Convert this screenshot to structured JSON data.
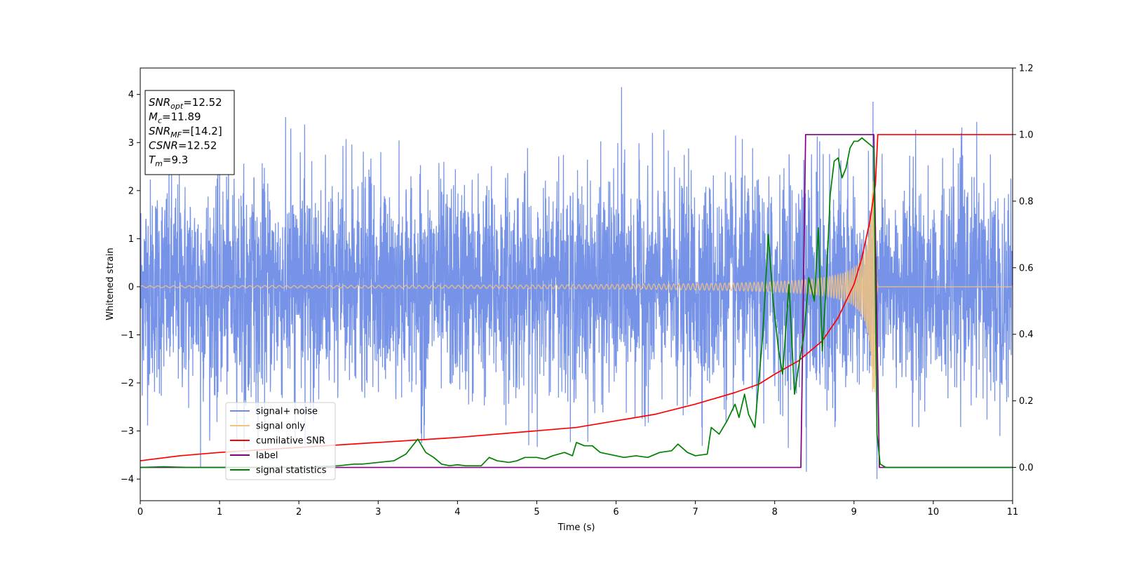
{
  "chart_data": {
    "type": "line",
    "xlabel": "Time (s)",
    "ylabel": "Whitened strain",
    "xlim": [
      0,
      11
    ],
    "ylim": [
      -4.45,
      4.55
    ],
    "y2lim": [
      -0.1,
      1.2
    ],
    "xticks": [
      0,
      1,
      2,
      3,
      4,
      5,
      6,
      7,
      8,
      9,
      10,
      11
    ],
    "yticks": [
      -4,
      -3,
      -2,
      -1,
      0,
      1,
      2,
      3,
      4
    ],
    "y2ticks": [
      "0.0",
      "0.2",
      "0.4",
      "0.6",
      "0.8",
      "1.0",
      "1.2"
    ],
    "y2tick_values": [
      0.0,
      0.2,
      0.4,
      0.6,
      0.8,
      1.0,
      1.2
    ],
    "legend_position": "lower-left",
    "stats_box": {
      "position": "upper-left",
      "lines": [
        {
          "sym": "SNR",
          "sub": "opt",
          "val": "=12.52"
        },
        {
          "sym": "M",
          "sub": "c",
          "val": "=11.89"
        },
        {
          "sym": "SNR",
          "sub": "MF",
          "val": "=[14.2]"
        },
        {
          "sym": "CSNR",
          "sub": "",
          "val": "=12.52"
        },
        {
          "sym": "T",
          "sub": "m",
          "val": "=9.3"
        }
      ]
    },
    "series": [
      {
        "name": "signal+ noise",
        "axis": "left",
        "color": "#6f8de6",
        "kind": "noise",
        "noise_std": 1.1,
        "noise_range": [
          -3.4,
          3.6
        ],
        "spikes": [
          {
            "x": 0.76,
            "y": -3.75
          },
          {
            "x": 6.07,
            "y": 4.15
          },
          {
            "x": 9.24,
            "y": 3.85
          },
          {
            "x": 8.4,
            "y": -3.85
          },
          {
            "x": 9.29,
            "y": -4.0
          }
        ]
      },
      {
        "name": "signal only",
        "axis": "left",
        "color": "#f2c380",
        "kind": "chirp",
        "amp_start": 0.02,
        "merger": 9.27,
        "end_amp": 2.2
      },
      {
        "name": "cumilative SNR",
        "axis": "right",
        "color": "#ff0000",
        "points": [
          [
            0,
            0.02
          ],
          [
            0.5,
            0.035
          ],
          [
            1,
            0.045
          ],
          [
            2,
            0.06
          ],
          [
            3,
            0.075
          ],
          [
            4,
            0.09
          ],
          [
            5,
            0.11
          ],
          [
            5.5,
            0.12
          ],
          [
            6,
            0.14
          ],
          [
            6.5,
            0.16
          ],
          [
            7,
            0.19
          ],
          [
            7.5,
            0.225
          ],
          [
            7.8,
            0.25
          ],
          [
            8,
            0.28
          ],
          [
            8.3,
            0.32
          ],
          [
            8.6,
            0.38
          ],
          [
            8.8,
            0.45
          ],
          [
            9.0,
            0.55
          ],
          [
            9.1,
            0.63
          ],
          [
            9.2,
            0.74
          ],
          [
            9.27,
            0.85
          ],
          [
            9.3,
            1.0
          ],
          [
            11,
            1.0
          ]
        ]
      },
      {
        "name": "label",
        "axis": "right",
        "color": "#800080",
        "points": [
          [
            0,
            0
          ],
          [
            8.33,
            0
          ],
          [
            8.39,
            1.0
          ],
          [
            9.25,
            1.0
          ],
          [
            9.32,
            0
          ],
          [
            11,
            0
          ]
        ]
      },
      {
        "name": "signal statistics",
        "axis": "right",
        "color": "#008000",
        "points": [
          [
            0,
            0
          ],
          [
            0.3,
            0.002
          ],
          [
            0.6,
            0.0
          ],
          [
            1,
            0
          ],
          [
            1.5,
            0.0
          ],
          [
            2,
            0
          ],
          [
            2.5,
            0.005
          ],
          [
            2.7,
            0.01
          ],
          [
            2.8,
            0.01
          ],
          [
            3.0,
            0.015
          ],
          [
            3.2,
            0.02
          ],
          [
            3.35,
            0.04
          ],
          [
            3.5,
            0.085
          ],
          [
            3.6,
            0.045
          ],
          [
            3.7,
            0.03
          ],
          [
            3.8,
            0.01
          ],
          [
            3.9,
            0.005
          ],
          [
            4.0,
            0.008
          ],
          [
            4.1,
            0.005
          ],
          [
            4.3,
            0.005
          ],
          [
            4.4,
            0.03
          ],
          [
            4.5,
            0.02
          ],
          [
            4.65,
            0.015
          ],
          [
            4.75,
            0.02
          ],
          [
            4.85,
            0.03
          ],
          [
            5.0,
            0.03
          ],
          [
            5.1,
            0.025
          ],
          [
            5.2,
            0.035
          ],
          [
            5.35,
            0.045
          ],
          [
            5.45,
            0.035
          ],
          [
            5.5,
            0.075
          ],
          [
            5.6,
            0.065
          ],
          [
            5.7,
            0.065
          ],
          [
            5.8,
            0.045
          ],
          [
            6.0,
            0.035
          ],
          [
            6.1,
            0.03
          ],
          [
            6.25,
            0.035
          ],
          [
            6.4,
            0.03
          ],
          [
            6.55,
            0.045
          ],
          [
            6.7,
            0.05
          ],
          [
            6.78,
            0.07
          ],
          [
            6.9,
            0.045
          ],
          [
            7.0,
            0.035
          ],
          [
            7.15,
            0.04
          ],
          [
            7.2,
            0.12
          ],
          [
            7.3,
            0.1
          ],
          [
            7.4,
            0.14
          ],
          [
            7.5,
            0.19
          ],
          [
            7.55,
            0.15
          ],
          [
            7.62,
            0.22
          ],
          [
            7.67,
            0.16
          ],
          [
            7.75,
            0.12
          ],
          [
            7.85,
            0.4
          ],
          [
            7.92,
            0.7
          ],
          [
            7.98,
            0.5
          ],
          [
            8.05,
            0.35
          ],
          [
            8.1,
            0.28
          ],
          [
            8.18,
            0.55
          ],
          [
            8.25,
            0.22
          ],
          [
            8.3,
            0.3
          ],
          [
            8.37,
            0.4
          ],
          [
            8.43,
            0.57
          ],
          [
            8.5,
            0.5
          ],
          [
            8.55,
            0.72
          ],
          [
            8.6,
            0.35
          ],
          [
            8.65,
            0.55
          ],
          [
            8.7,
            0.82
          ],
          [
            8.75,
            0.92
          ],
          [
            8.8,
            0.93
          ],
          [
            8.85,
            0.87
          ],
          [
            8.9,
            0.9
          ],
          [
            8.95,
            0.96
          ],
          [
            9.0,
            0.98
          ],
          [
            9.05,
            0.98
          ],
          [
            9.1,
            0.99
          ],
          [
            9.15,
            0.98
          ],
          [
            9.2,
            0.97
          ],
          [
            9.25,
            0.96
          ],
          [
            9.29,
            0.1
          ],
          [
            9.33,
            0.01
          ],
          [
            9.4,
            0
          ],
          [
            11,
            0
          ]
        ]
      }
    ]
  }
}
